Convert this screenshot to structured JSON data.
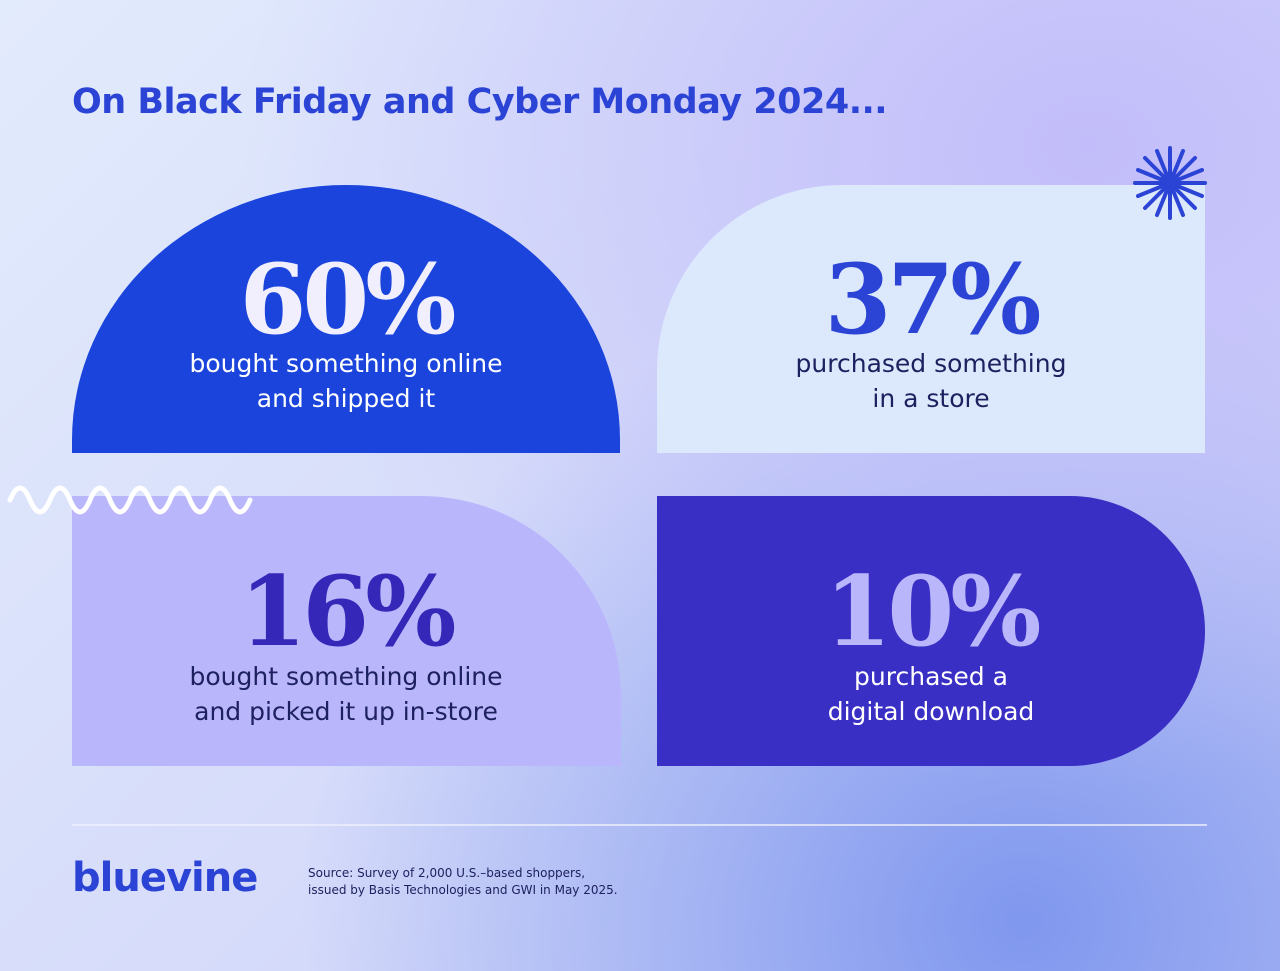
{
  "header": {
    "title": "On Black Friday and Cyber Monday 2024..."
  },
  "cards": [
    {
      "value": "60%",
      "label": [
        "bought something online",
        "and shipped it"
      ]
    },
    {
      "value": "37%",
      "label": [
        "purchased something",
        "in a store"
      ]
    },
    {
      "value": "16%",
      "label": [
        "bought something online",
        "and picked it up in-store"
      ]
    },
    {
      "value": "10%",
      "label": [
        "purchased a",
        "digital download"
      ]
    }
  ],
  "footer": {
    "logo": "bluevine",
    "source": [
      "Source: Survey of 2,000 U.S.–based shoppers,",
      "issued by Basis Technologies and GWI in May 2025."
    ]
  }
}
